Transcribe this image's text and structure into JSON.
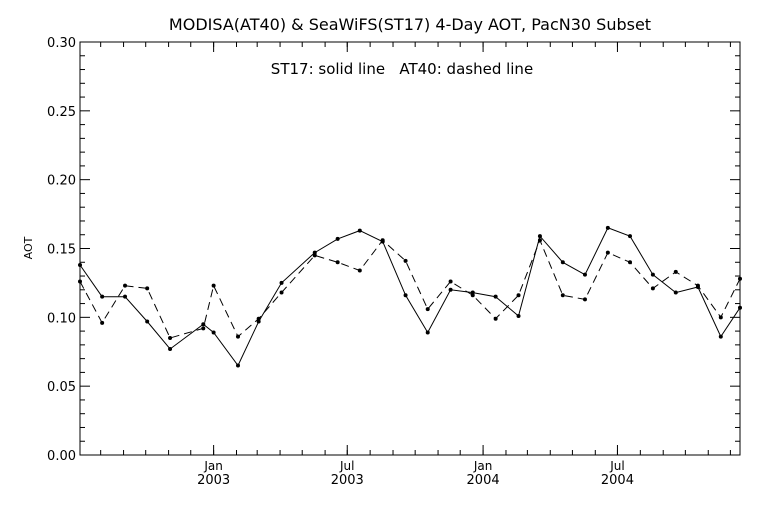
{
  "chart_data": {
    "type": "line",
    "title": "MODISA(AT40) & SeaWiFS(ST17) 4-Day AOT, PacN30 Subset",
    "annotation": "ST17: solid line   AT40: dashed line",
    "ylabel": "AOT",
    "xlabel": "",
    "ylim": [
      0.0,
      0.3
    ],
    "yticks": [
      "0.00",
      "0.05",
      "0.10",
      "0.15",
      "0.20",
      "0.25",
      "0.30"
    ],
    "xlim": [
      "2002-07-04",
      "2004-12-14"
    ],
    "xticks": [
      {
        "month": "Jan",
        "year": "2003",
        "date": "2003-01-01"
      },
      {
        "month": "Jul",
        "year": "2003",
        "date": "2003-07-01"
      },
      {
        "month": "Jan",
        "year": "2004",
        "date": "2004-01-01"
      },
      {
        "month": "Jul",
        "year": "2004",
        "date": "2004-07-01"
      }
    ],
    "grid": false,
    "series": [
      {
        "name": "ST17",
        "style": "solid",
        "x": [
          "2002-07-04",
          "2002-08-03",
          "2002-09-03",
          "2002-10-03",
          "2002-11-03",
          "2002-12-18",
          "2003-01-01",
          "2003-02-03",
          "2003-03-03",
          "2003-04-03",
          "2003-05-18",
          "2003-06-18",
          "2003-07-18",
          "2003-08-18",
          "2003-09-18",
          "2003-10-18",
          "2003-11-18",
          "2003-12-18",
          "2004-01-18",
          "2004-02-18",
          "2004-03-18",
          "2004-04-18",
          "2004-05-18",
          "2004-06-18",
          "2004-07-18",
          "2004-08-18",
          "2004-09-18",
          "2004-10-18",
          "2004-11-18",
          "2004-12-14"
        ],
        "values": [
          0.138,
          0.115,
          0.115,
          0.097,
          0.077,
          0.095,
          0.089,
          0.065,
          0.097,
          0.125,
          0.147,
          0.157,
          0.163,
          0.155,
          0.116,
          0.089,
          0.12,
          0.118,
          0.115,
          0.101,
          0.159,
          0.14,
          0.131,
          0.165,
          0.159,
          0.131,
          0.118,
          0.122,
          0.086,
          0.107
        ]
      },
      {
        "name": "AT40",
        "style": "dashed",
        "x": [
          "2002-07-04",
          "2002-08-03",
          "2002-09-03",
          "2002-10-03",
          "2002-11-03",
          "2002-12-18",
          "2003-01-01",
          "2003-02-03",
          "2003-03-03",
          "2003-04-03",
          "2003-05-18",
          "2003-06-18",
          "2003-07-18",
          "2003-08-18",
          "2003-09-18",
          "2003-10-18",
          "2003-11-18",
          "2003-12-18",
          "2004-01-18",
          "2004-02-18",
          "2004-03-18",
          "2004-04-18",
          "2004-05-18",
          "2004-06-18",
          "2004-07-18",
          "2004-08-18",
          "2004-09-18",
          "2004-10-18",
          "2004-11-18",
          "2004-12-14"
        ],
        "values": [
          0.126,
          0.096,
          0.123,
          0.121,
          0.085,
          0.092,
          0.123,
          0.086,
          0.099,
          0.118,
          0.145,
          0.14,
          0.134,
          0.156,
          0.141,
          0.106,
          0.126,
          0.116,
          0.099,
          0.116,
          0.156,
          0.116,
          0.113,
          0.147,
          0.14,
          0.121,
          0.133,
          0.123,
          0.1,
          0.128
        ]
      }
    ]
  }
}
